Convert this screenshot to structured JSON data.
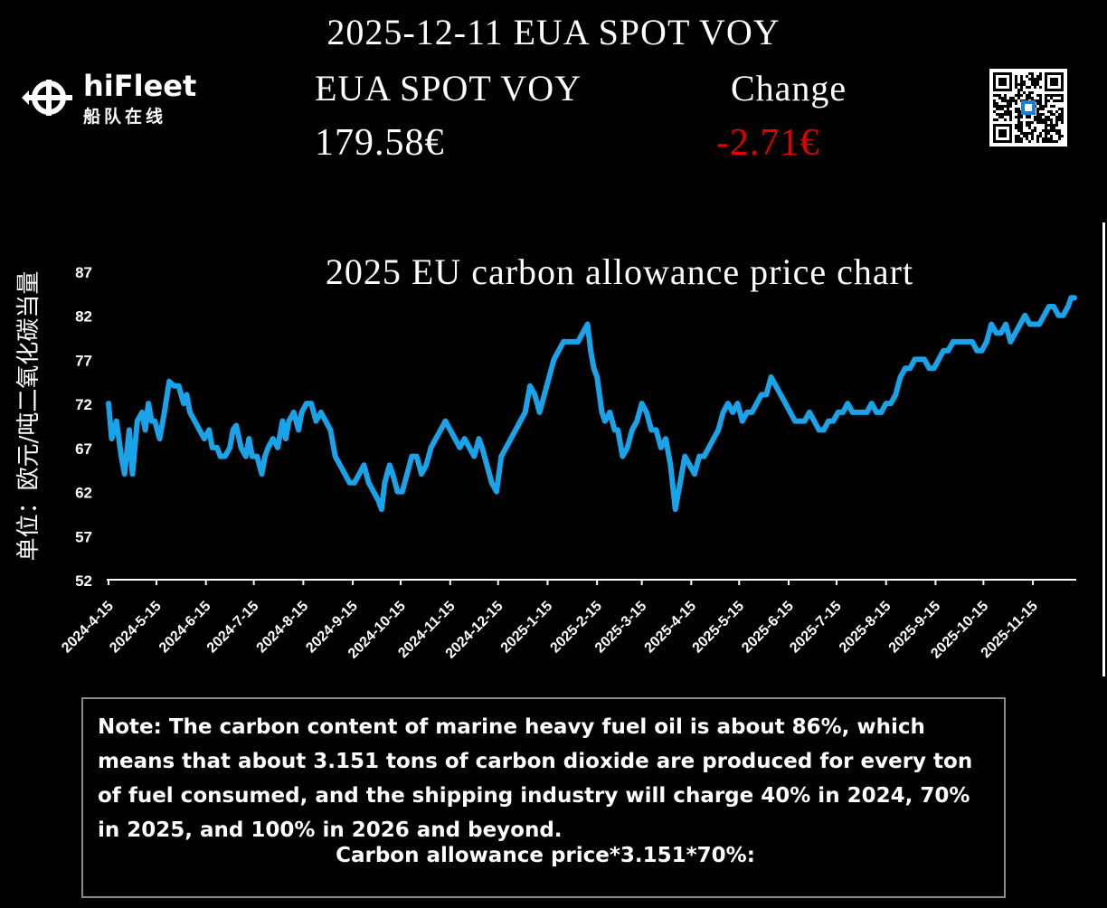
{
  "header": {
    "title": "2025-12-11 EUA SPOT VOY",
    "product_label": "EUA SPOT VOY",
    "change_label": "Change",
    "price": "179.58€",
    "change": "-2.71€",
    "change_color": "#e00000"
  },
  "logo": {
    "brand": "hiFleet",
    "brand_cn": "船队在线",
    "icon": "hifleet-logo-icon"
  },
  "qr": {
    "icon": "qr-code-icon"
  },
  "chart_data": {
    "type": "line",
    "title": "2025 EU carbon allowance price chart",
    "ylabel": "单位：欧元/吨二氧化碳当量",
    "xlabel": "",
    "ylim": [
      52,
      87
    ],
    "yticks": [
      52,
      57,
      62,
      67,
      72,
      77,
      82,
      87
    ],
    "xticks": [
      "2024-4-15",
      "2024-5-15",
      "2024-6-15",
      "2024-7-15",
      "2024-8-15",
      "2024-9-15",
      "2024-10-15",
      "2024-11-15",
      "2024-12-15",
      "2025-1-15",
      "2025-2-15",
      "2025-3-15",
      "2025-4-15",
      "2025-5-15",
      "2025-6-15",
      "2025-7-15",
      "2025-8-15",
      "2025-9-15",
      "2025-10-15",
      "2025-11-15"
    ],
    "x_start": "2024-04-15",
    "x_end": "2025-12-11",
    "line_color": "#1aa3e8",
    "grid": false,
    "series": [
      {
        "points": [
          [
            "2024-04-15",
            72
          ],
          [
            "2024-04-17",
            68
          ],
          [
            "2024-04-20",
            70
          ],
          [
            "2024-04-23",
            66
          ],
          [
            "2024-04-25",
            64
          ],
          [
            "2024-04-28",
            69
          ],
          [
            "2024-04-30",
            64
          ],
          [
            "2024-05-03",
            70
          ],
          [
            "2024-05-06",
            71
          ],
          [
            "2024-05-08",
            69
          ],
          [
            "2024-05-10",
            72
          ],
          [
            "2024-05-12",
            70
          ],
          [
            "2024-05-14",
            70
          ],
          [
            "2024-05-17",
            68
          ],
          [
            "2024-05-20",
            71
          ],
          [
            "2024-05-23",
            74.5
          ],
          [
            "2024-05-26",
            74
          ],
          [
            "2024-05-29",
            74
          ],
          [
            "2024-06-01",
            72
          ],
          [
            "2024-06-03",
            73
          ],
          [
            "2024-06-05",
            71
          ],
          [
            "2024-06-08",
            70
          ],
          [
            "2024-06-11",
            69
          ],
          [
            "2024-06-14",
            68
          ],
          [
            "2024-06-17",
            69
          ],
          [
            "2024-06-19",
            67
          ],
          [
            "2024-06-22",
            67
          ],
          [
            "2024-06-24",
            66
          ],
          [
            "2024-06-27",
            66
          ],
          [
            "2024-06-30",
            67
          ],
          [
            "2024-07-02",
            69
          ],
          [
            "2024-07-04",
            69.5
          ],
          [
            "2024-07-07",
            67
          ],
          [
            "2024-07-10",
            66
          ],
          [
            "2024-07-12",
            68
          ],
          [
            "2024-07-14",
            66
          ],
          [
            "2024-07-17",
            66
          ],
          [
            "2024-07-20",
            64
          ],
          [
            "2024-07-22",
            66
          ],
          [
            "2024-07-24",
            67
          ],
          [
            "2024-07-27",
            68
          ],
          [
            "2024-07-30",
            67
          ],
          [
            "2024-08-02",
            70
          ],
          [
            "2024-08-04",
            68
          ],
          [
            "2024-08-06",
            70
          ],
          [
            "2024-08-09",
            71
          ],
          [
            "2024-08-12",
            69
          ],
          [
            "2024-08-14",
            71
          ],
          [
            "2024-08-17",
            72
          ],
          [
            "2024-08-20",
            72
          ],
          [
            "2024-08-23",
            70
          ],
          [
            "2024-08-26",
            71
          ],
          [
            "2024-08-29",
            70
          ],
          [
            "2024-09-01",
            69
          ],
          [
            "2024-09-04",
            66
          ],
          [
            "2024-09-07",
            65
          ],
          [
            "2024-09-10",
            64
          ],
          [
            "2024-09-13",
            63
          ],
          [
            "2024-09-16",
            63
          ],
          [
            "2024-09-19",
            64
          ],
          [
            "2024-09-22",
            65
          ],
          [
            "2024-09-25",
            63
          ],
          [
            "2024-09-28",
            62
          ],
          [
            "2024-10-01",
            61
          ],
          [
            "2024-10-03",
            60
          ],
          [
            "2024-10-05",
            63
          ],
          [
            "2024-10-08",
            65
          ],
          [
            "2024-10-10",
            64
          ],
          [
            "2024-10-13",
            62
          ],
          [
            "2024-10-16",
            62
          ],
          [
            "2024-10-19",
            64
          ],
          [
            "2024-10-22",
            66
          ],
          [
            "2024-10-25",
            66
          ],
          [
            "2024-10-28",
            64
          ],
          [
            "2024-10-31",
            65
          ],
          [
            "2024-11-03",
            67
          ],
          [
            "2024-11-06",
            68
          ],
          [
            "2024-11-09",
            69
          ],
          [
            "2024-11-12",
            70
          ],
          [
            "2024-11-15",
            69
          ],
          [
            "2024-11-18",
            68
          ],
          [
            "2024-11-21",
            67
          ],
          [
            "2024-11-24",
            68
          ],
          [
            "2024-11-27",
            67
          ],
          [
            "2024-11-30",
            66
          ],
          [
            "2024-12-03",
            68
          ],
          [
            "2024-12-05",
            67
          ],
          [
            "2024-12-08",
            65
          ],
          [
            "2024-12-11",
            63
          ],
          [
            "2024-12-14",
            62
          ],
          [
            "2024-12-17",
            66
          ],
          [
            "2024-12-20",
            67
          ],
          [
            "2024-12-23",
            68
          ],
          [
            "2024-12-26",
            69
          ],
          [
            "2024-12-29",
            70
          ],
          [
            "2025-01-01",
            71
          ],
          [
            "2025-01-04",
            74
          ],
          [
            "2025-01-07",
            73
          ],
          [
            "2025-01-10",
            71
          ],
          [
            "2025-01-13",
            73
          ],
          [
            "2025-01-16",
            75
          ],
          [
            "2025-01-19",
            77
          ],
          [
            "2025-01-22",
            78
          ],
          [
            "2025-01-25",
            79
          ],
          [
            "2025-01-28",
            79
          ],
          [
            "2025-01-31",
            79
          ],
          [
            "2025-02-03",
            79
          ],
          [
            "2025-02-06",
            80
          ],
          [
            "2025-02-09",
            81
          ],
          [
            "2025-02-11",
            78
          ],
          [
            "2025-02-13",
            76
          ],
          [
            "2025-02-15",
            75
          ],
          [
            "2025-02-18",
            71
          ],
          [
            "2025-02-20",
            70
          ],
          [
            "2025-02-23",
            71
          ],
          [
            "2025-02-26",
            69
          ],
          [
            "2025-02-28",
            69
          ],
          [
            "2025-03-03",
            66
          ],
          [
            "2025-03-06",
            67
          ],
          [
            "2025-03-09",
            69
          ],
          [
            "2025-03-12",
            70
          ],
          [
            "2025-03-15",
            72
          ],
          [
            "2025-03-18",
            71
          ],
          [
            "2025-03-21",
            69
          ],
          [
            "2025-03-24",
            69
          ],
          [
            "2025-03-27",
            67
          ],
          [
            "2025-03-30",
            68
          ],
          [
            "2025-04-02",
            65
          ],
          [
            "2025-04-05",
            60
          ],
          [
            "2025-04-08",
            63
          ],
          [
            "2025-04-11",
            66
          ],
          [
            "2025-04-14",
            65
          ],
          [
            "2025-04-17",
            64
          ],
          [
            "2025-04-20",
            66
          ],
          [
            "2025-04-23",
            66
          ],
          [
            "2025-04-26",
            67
          ],
          [
            "2025-04-29",
            68
          ],
          [
            "2025-05-02",
            69
          ],
          [
            "2025-05-05",
            71
          ],
          [
            "2025-05-08",
            72
          ],
          [
            "2025-05-11",
            71
          ],
          [
            "2025-05-14",
            72
          ],
          [
            "2025-05-17",
            70
          ],
          [
            "2025-05-20",
            71
          ],
          [
            "2025-05-23",
            71
          ],
          [
            "2025-05-26",
            72
          ],
          [
            "2025-05-29",
            73
          ],
          [
            "2025-06-01",
            73
          ],
          [
            "2025-06-04",
            75
          ],
          [
            "2025-06-07",
            74
          ],
          [
            "2025-06-10",
            73
          ],
          [
            "2025-06-13",
            72
          ],
          [
            "2025-06-16",
            71
          ],
          [
            "2025-06-19",
            70
          ],
          [
            "2025-06-22",
            70
          ],
          [
            "2025-06-25",
            70
          ],
          [
            "2025-06-28",
            71
          ],
          [
            "2025-07-01",
            70
          ],
          [
            "2025-07-04",
            69
          ],
          [
            "2025-07-07",
            69
          ],
          [
            "2025-07-10",
            70
          ],
          [
            "2025-07-13",
            70
          ],
          [
            "2025-07-16",
            71
          ],
          [
            "2025-07-19",
            71
          ],
          [
            "2025-07-22",
            72
          ],
          [
            "2025-07-25",
            71
          ],
          [
            "2025-07-28",
            71
          ],
          [
            "2025-07-31",
            71
          ],
          [
            "2025-08-03",
            71
          ],
          [
            "2025-08-06",
            72
          ],
          [
            "2025-08-09",
            71
          ],
          [
            "2025-08-12",
            71
          ],
          [
            "2025-08-15",
            72
          ],
          [
            "2025-08-18",
            72
          ],
          [
            "2025-08-21",
            73
          ],
          [
            "2025-08-24",
            75
          ],
          [
            "2025-08-27",
            76
          ],
          [
            "2025-08-30",
            76
          ],
          [
            "2025-09-02",
            77
          ],
          [
            "2025-09-05",
            77
          ],
          [
            "2025-09-08",
            77
          ],
          [
            "2025-09-11",
            76
          ],
          [
            "2025-09-14",
            76
          ],
          [
            "2025-09-17",
            77
          ],
          [
            "2025-09-20",
            78
          ],
          [
            "2025-09-23",
            78
          ],
          [
            "2025-09-26",
            79
          ],
          [
            "2025-09-29",
            79
          ],
          [
            "2025-10-02",
            79
          ],
          [
            "2025-10-05",
            79
          ],
          [
            "2025-10-08",
            79
          ],
          [
            "2025-10-11",
            78
          ],
          [
            "2025-10-14",
            78
          ],
          [
            "2025-10-17",
            79
          ],
          [
            "2025-10-20",
            81
          ],
          [
            "2025-10-23",
            80
          ],
          [
            "2025-10-26",
            80
          ],
          [
            "2025-10-29",
            81
          ],
          [
            "2025-11-01",
            79
          ],
          [
            "2025-11-04",
            80
          ],
          [
            "2025-11-07",
            81
          ],
          [
            "2025-11-10",
            82
          ],
          [
            "2025-11-13",
            81
          ],
          [
            "2025-11-16",
            81
          ],
          [
            "2025-11-19",
            81
          ],
          [
            "2025-11-22",
            82
          ],
          [
            "2025-11-25",
            83
          ],
          [
            "2025-11-28",
            83
          ],
          [
            "2025-12-01",
            82
          ],
          [
            "2025-12-04",
            82
          ],
          [
            "2025-12-07",
            83
          ],
          [
            "2025-12-09",
            84
          ],
          [
            "2025-12-11",
            84
          ]
        ]
      }
    ]
  },
  "note": {
    "text": "Note: The carbon content of marine heavy fuel oil is about 86%, which means that about 3.151 tons of carbon dioxide are produced for every ton of fuel consumed, and the shipping industry will charge 40% in 2024, 70% in 2025, and 100% in 2026 and beyond.",
    "formula": "Carbon allowance price*3.151*70%:"
  }
}
